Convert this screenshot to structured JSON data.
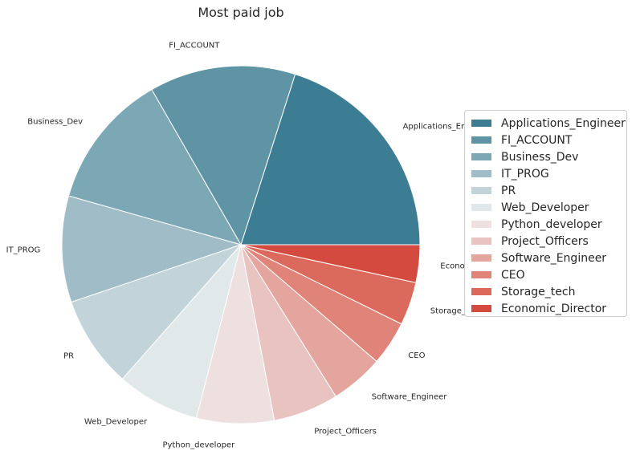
{
  "chart_data": {
    "type": "pie",
    "title": "Most paid job",
    "categories": [
      "Applications_Engineer",
      "FI_ACCOUNT",
      "Business_Dev",
      "IT_PROG",
      "PR",
      "Web_Developer",
      "Python_developer",
      "Project_Officers",
      "Software_Engineer",
      "CEO",
      "Storage_tech",
      "Economic_Director"
    ],
    "values": [
      20.1,
      13.2,
      12.3,
      9.6,
      8.3,
      7.5,
      7.0,
      5.9,
      4.8,
      4.0,
      3.9,
      3.4
    ],
    "colors": [
      "#3d7d93",
      "#5e94a4",
      "#7ca7b5",
      "#a0bcc6",
      "#c2d4da",
      "#e0e8ea",
      "#ede0df",
      "#e9c3c0",
      "#e3a59e",
      "#e08379",
      "#db6a5c",
      "#d54a3e"
    ],
    "start_angle_deg": 0,
    "legend_position": "right"
  }
}
